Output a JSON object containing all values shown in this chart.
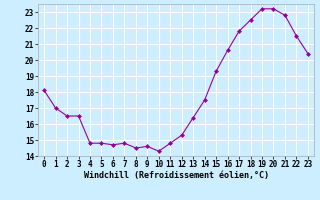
{
  "x": [
    0,
    1,
    2,
    3,
    4,
    5,
    6,
    7,
    8,
    9,
    10,
    11,
    12,
    13,
    14,
    15,
    16,
    17,
    18,
    19,
    20,
    21,
    22,
    23
  ],
  "y": [
    18.1,
    17.0,
    16.5,
    16.5,
    14.8,
    14.8,
    14.7,
    14.8,
    14.5,
    14.6,
    14.3,
    14.8,
    15.3,
    16.4,
    17.5,
    19.3,
    20.6,
    21.8,
    22.5,
    23.2,
    23.2,
    22.8,
    21.5,
    20.4
  ],
  "line_color": "#990099",
  "marker": "D",
  "markersize": 2.0,
  "linewidth": 0.8,
  "bg_color": "#cceeff",
  "grid_color": "#ffffff",
  "xlabel": "Windchill (Refroidissement éolien,°C)",
  "xlabel_fontsize": 6.0,
  "tick_fontsize": 5.5,
  "ylim": [
    14,
    23.5
  ],
  "yticks": [
    14,
    15,
    16,
    17,
    18,
    19,
    20,
    21,
    22,
    23
  ],
  "xticks": [
    0,
    1,
    2,
    3,
    4,
    5,
    6,
    7,
    8,
    9,
    10,
    11,
    12,
    13,
    14,
    15,
    16,
    17,
    18,
    19,
    20,
    21,
    22,
    23
  ],
  "xlim": [
    -0.5,
    23.5
  ]
}
